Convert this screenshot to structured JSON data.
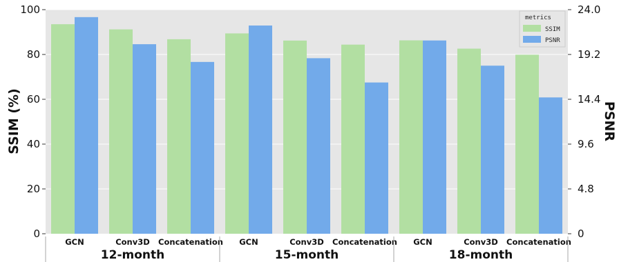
{
  "chart_data": {
    "type": "bar",
    "categories": [
      "GCN",
      "Conv3D",
      "Concatenation",
      "GCN",
      "Conv3D",
      "Concatenation",
      "GCN",
      "Conv3D",
      "Concatenation"
    ],
    "groups": [
      {
        "label": "12-month",
        "category_indices": [
          0,
          1,
          2
        ]
      },
      {
        "label": "15-month",
        "category_indices": [
          3,
          4,
          5
        ]
      },
      {
        "label": "18-month",
        "category_indices": [
          6,
          7,
          8
        ]
      }
    ],
    "series": [
      {
        "name": "SSIM",
        "axis": "left",
        "color": "#b2dfa2",
        "values": [
          93.5,
          91.2,
          86.8,
          89.4,
          86.2,
          84.4,
          86.3,
          82.6,
          79.9
        ]
      },
      {
        "name": "PSNR",
        "axis": "right",
        "color": "#72aaea",
        "values": [
          23.2,
          20.3,
          18.4,
          22.3,
          18.8,
          16.2,
          20.7,
          18.0,
          14.6
        ]
      }
    ],
    "ylabel": "SSIM (%)",
    "y2label": "PSNR",
    "ylim": [
      0,
      100
    ],
    "y2lim": [
      0,
      24
    ],
    "yticks": [
      "0",
      "20",
      "40",
      "60",
      "80",
      "100"
    ],
    "y2ticks": [
      "0",
      "4.8",
      "9.6",
      "14.4",
      "19.2",
      "24.0"
    ],
    "legend": {
      "title": "metrics",
      "placement": "top-right"
    },
    "grid": true,
    "background": "#e6e6e6"
  }
}
